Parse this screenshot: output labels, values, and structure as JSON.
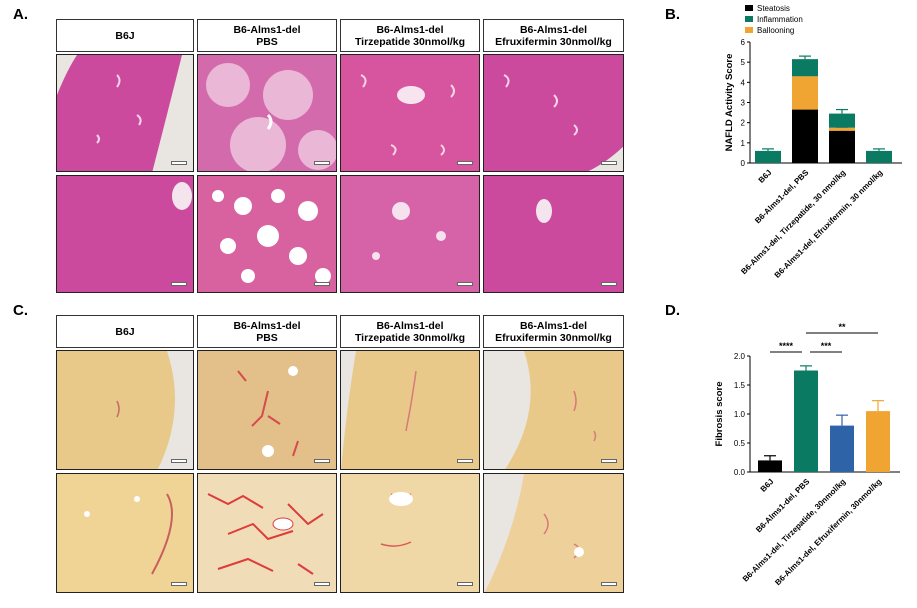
{
  "panels": {
    "a": "A.",
    "b": "B.",
    "c": "C.",
    "d": "D."
  },
  "histo_headers": [
    {
      "line1": "B6J",
      "line2": ""
    },
    {
      "line1": "B6-Alms1-del",
      "line2": "PBS"
    },
    {
      "line1": "B6-Alms1-del",
      "line2": "Tirzepatide 30nmol/kg"
    },
    {
      "line1": "B6-Alms1-del",
      "line2": "Efruxifermin 30nmol/kg"
    }
  ],
  "colors": {
    "he_stain": "#cc4a9e",
    "he_background": "#e9e6e2",
    "sirius_stain": "#e8c98a",
    "steatosis": "#000000",
    "inflammation": "#0b7a62",
    "ballooning": "#f0a532",
    "fib_b6j": "#000000",
    "fib_pbs": "#0b7a62",
    "fib_tirz": "#2f63a8",
    "fib_efx": "#f0a532"
  },
  "chart_data": [
    {
      "type": "bar",
      "stacked": true,
      "ylabel": "NAFLD Activity Score",
      "ylim": [
        0,
        6
      ],
      "yticks": [
        0,
        1,
        2,
        3,
        4,
        5,
        6
      ],
      "categories": [
        "B6J",
        "B6-Alms1-del, PBS",
        "B6-Alms1-del, Tirzepatide, 30 nmol/kg",
        "B6-Alms1-del, Efruxifermin, 30 nmol/kg"
      ],
      "series": [
        {
          "name": "Steatosis",
          "color": "#000000",
          "values": [
            0,
            2.65,
            1.6,
            0
          ],
          "errors": [
            0,
            0.2,
            0.12,
            0
          ]
        },
        {
          "name": "Ballooning",
          "color": "#f0a532",
          "values": [
            0,
            1.65,
            0.15,
            0
          ],
          "errors": [
            0,
            0.15,
            0.1,
            0
          ]
        },
        {
          "name": "Inflammation",
          "color": "#0b7a62",
          "values": [
            0.6,
            0.85,
            0.7,
            0.6
          ],
          "errors": [
            0.1,
            0.15,
            0.2,
            0.1
          ]
        }
      ],
      "legend_order": [
        "Steatosis",
        "Inflammation",
        "Ballooning"
      ],
      "legend_placement": "top"
    },
    {
      "type": "bar",
      "ylabel": "Fibrosis score",
      "ylim": [
        0,
        2.0
      ],
      "yticks": [
        0.0,
        0.5,
        1.0,
        1.5,
        2.0
      ],
      "categories": [
        "B6J",
        "B6-Alms1-del, PBS",
        "B6-Alms1-del, Tirzepatide, 30nmol/kg",
        "B6-Alms1-del, Efruxifermin, 30nmol/kg"
      ],
      "values": [
        0.2,
        1.75,
        0.8,
        1.05
      ],
      "errors": [
        0.08,
        0.08,
        0.18,
        0.18
      ],
      "colors": [
        "#000000",
        "#0b7a62",
        "#2f63a8",
        "#f0a532"
      ],
      "significance": [
        {
          "from": 1,
          "to": 3,
          "label": "**"
        },
        {
          "from": 0,
          "to": 1,
          "label": "****"
        },
        {
          "from": 1,
          "to": 2,
          "label": "***"
        }
      ]
    }
  ]
}
